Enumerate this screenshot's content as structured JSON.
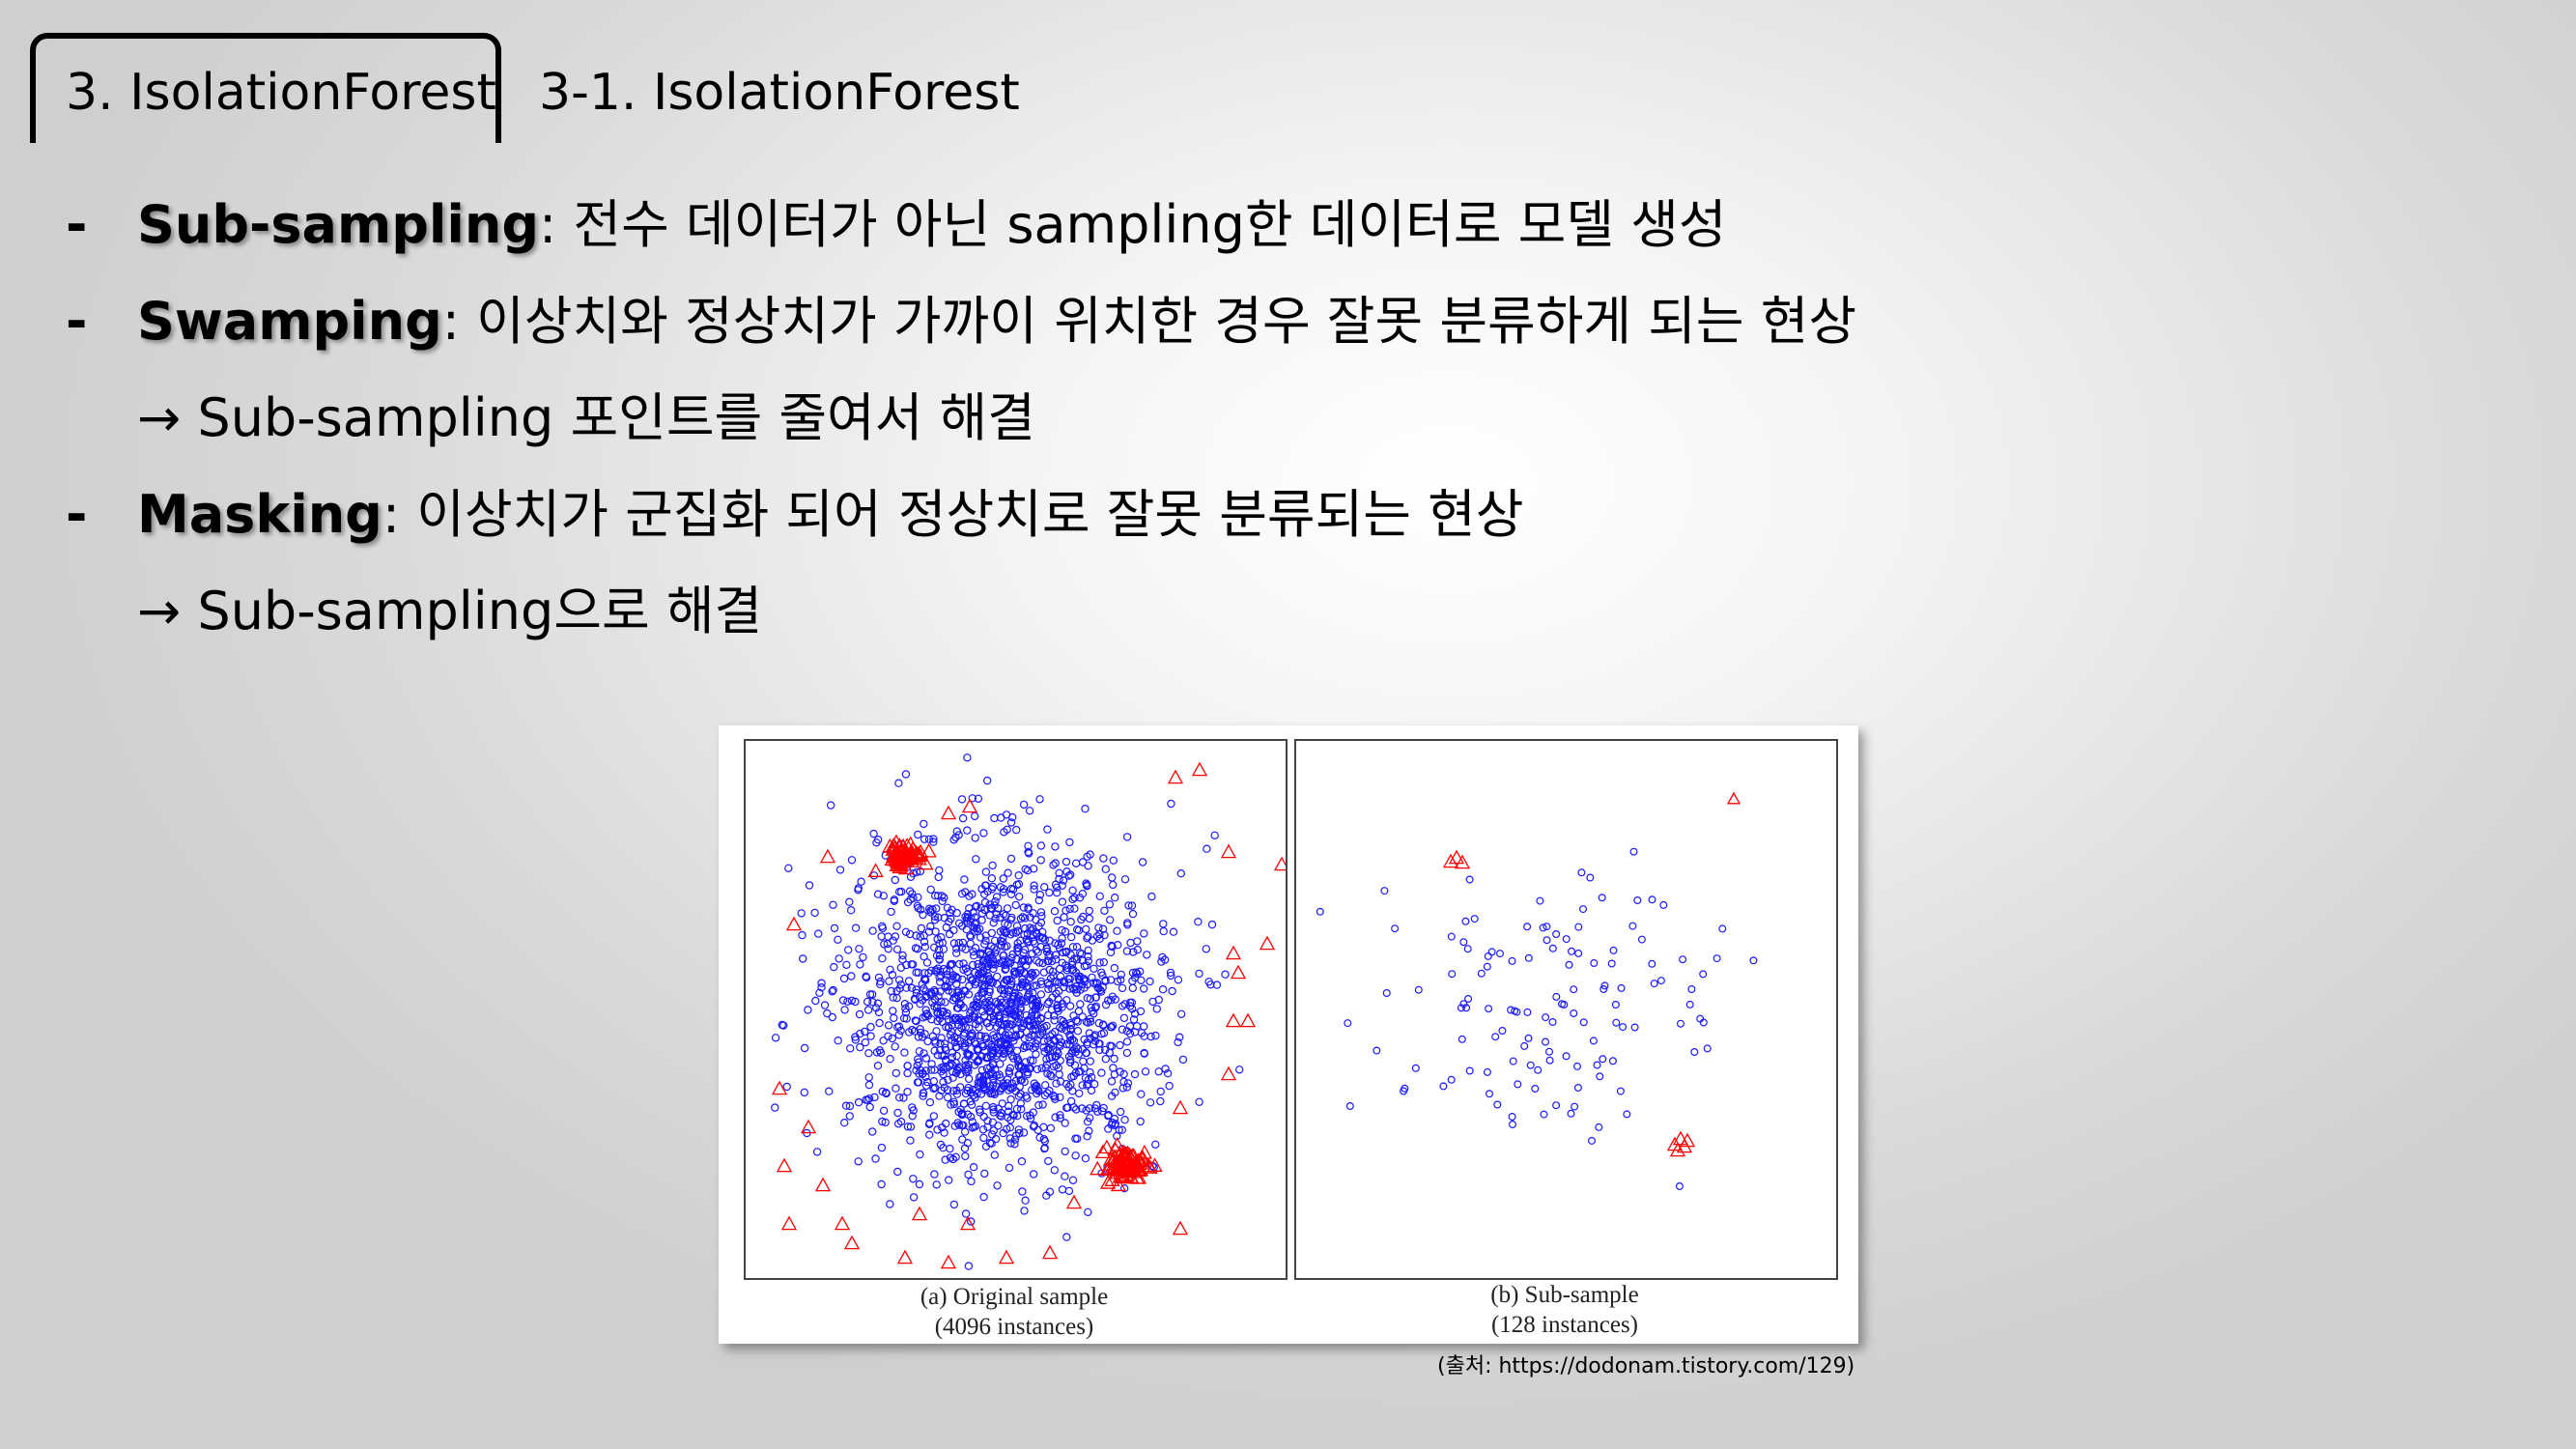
{
  "header": {
    "active_tab": "3. IsolationForest",
    "subtitle": "3-1. IsolationForest"
  },
  "bullets": [
    {
      "dash": "-",
      "term": "Sub-sampling",
      "rest": ": 전수 데이터가 아닌 sampling한 데이터로 모델 생성"
    },
    {
      "dash": "-",
      "term": "Swamping",
      "rest": ": 이상치와 정상치가 가까이 위치한 경우 잘못 분류하게 되는 현상"
    },
    {
      "arrow": "→ Sub-sampling 포인트를 줄여서 해결"
    },
    {
      "dash": "-",
      "term": "Masking",
      "rest": ": 이상치가 군집화 되어 정상치로 잘못 분류되는 현상"
    },
    {
      "arrow": "→ Sub-sampling으로 해결"
    }
  ],
  "figure": {
    "left_caption_line1": "(a) Original sample",
    "left_caption_line2": "(4096 instances)",
    "right_caption_line1": "(b) Sub-sample",
    "right_caption_line2": "(128 instances)",
    "normal_color": "#1a1aff",
    "anomaly_color": "#ff0000",
    "normal_marker": "circle",
    "anomaly_marker": "triangle",
    "left_instances": 4096,
    "right_instances": 128
  },
  "source": "(출처: https://dodonam.tistory.com/129)"
}
